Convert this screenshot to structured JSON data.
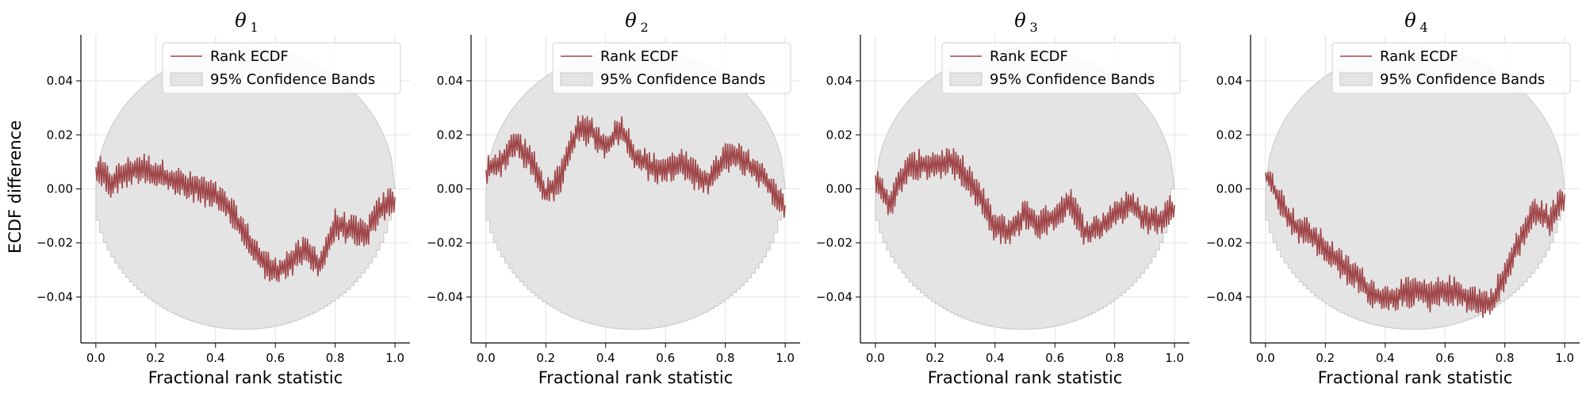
{
  "colors": {
    "line": "#a0474a",
    "band_fill": "#e4e4e4",
    "band_edge": "#c8c8c8",
    "grid": "#e3e3e3",
    "axis": "#000000",
    "legend_border": "#d0d0d0"
  },
  "shared": {
    "ylabel": "ECDF difference",
    "xlabel": "Fractional rank statistic",
    "legend": {
      "line_label": "Rank ECDF",
      "band_label": "95% Confidence Bands"
    }
  },
  "chart_data": [
    {
      "type": "line",
      "title": "θ",
      "title_subscript": "1",
      "xlabel": "Fractional rank statistic",
      "ylabel": "ECDF difference",
      "xlim": [
        -0.05,
        1.05
      ],
      "ylim": [
        -0.057,
        0.057
      ],
      "xticks": [
        "0.0",
        "0.2",
        "0.4",
        "0.6",
        "0.8",
        "1.0"
      ],
      "yticks": [
        "−0.04",
        "−0.02",
        "0.00",
        "0.02",
        "0.04"
      ],
      "grid": true,
      "legend_placement": "top-right",
      "band_halfwidth_at_center": 0.052,
      "series": [
        {
          "name": "Rank ECDF",
          "x": [
            0.0,
            0.05,
            0.1,
            0.15,
            0.2,
            0.25,
            0.3,
            0.35,
            0.4,
            0.45,
            0.5,
            0.55,
            0.6,
            0.65,
            0.7,
            0.75,
            0.8,
            0.85,
            0.9,
            0.95,
            1.0
          ],
          "y": [
            0.008,
            0.002,
            0.006,
            0.008,
            0.006,
            0.004,
            0.001,
            0.0,
            -0.003,
            -0.008,
            -0.017,
            -0.026,
            -0.031,
            -0.027,
            -0.023,
            -0.028,
            -0.013,
            -0.015,
            -0.017,
            -0.008,
            -0.003
          ]
        }
      ]
    },
    {
      "type": "line",
      "title": "θ",
      "title_subscript": "2",
      "xlabel": "Fractional rank statistic",
      "ylabel": "",
      "xlim": [
        -0.05,
        1.05
      ],
      "ylim": [
        -0.057,
        0.057
      ],
      "xticks": [
        "0.0",
        "0.2",
        "0.4",
        "0.6",
        "0.8",
        "1.0"
      ],
      "yticks": [
        "−0.04",
        "−0.02",
        "0.00",
        "0.02",
        "0.04"
      ],
      "grid": true,
      "legend_placement": "top-right",
      "band_halfwidth_at_center": 0.052,
      "series": [
        {
          "name": "Rank ECDF",
          "x": [
            0.0,
            0.05,
            0.1,
            0.15,
            0.2,
            0.25,
            0.3,
            0.35,
            0.4,
            0.45,
            0.5,
            0.55,
            0.6,
            0.65,
            0.7,
            0.75,
            0.8,
            0.85,
            0.9,
            0.95,
            1.0
          ],
          "y": [
            0.007,
            0.01,
            0.017,
            0.011,
            -0.002,
            0.004,
            0.021,
            0.022,
            0.015,
            0.023,
            0.012,
            0.008,
            0.007,
            0.01,
            0.005,
            0.003,
            0.012,
            0.011,
            0.007,
            0.001,
            -0.006
          ]
        }
      ]
    },
    {
      "type": "line",
      "title": "θ",
      "title_subscript": "3",
      "xlabel": "Fractional rank statistic",
      "ylabel": "",
      "xlim": [
        -0.05,
        1.05
      ],
      "ylim": [
        -0.057,
        0.057
      ],
      "xticks": [
        "0.0",
        "0.2",
        "0.4",
        "0.6",
        "0.8",
        "1.0"
      ],
      "yticks": [
        "−0.04",
        "−0.02",
        "0.00",
        "0.02",
        "0.04"
      ],
      "grid": true,
      "legend_placement": "top-right",
      "band_halfwidth_at_center": 0.052,
      "series": [
        {
          "name": "Rank ECDF",
          "x": [
            0.0,
            0.05,
            0.1,
            0.15,
            0.2,
            0.25,
            0.3,
            0.35,
            0.4,
            0.45,
            0.5,
            0.55,
            0.6,
            0.65,
            0.7,
            0.75,
            0.8,
            0.85,
            0.9,
            0.95,
            1.0
          ],
          "y": [
            0.005,
            -0.006,
            0.007,
            0.009,
            0.009,
            0.01,
            0.006,
            -0.003,
            -0.014,
            -0.016,
            -0.009,
            -0.013,
            -0.01,
            -0.004,
            -0.016,
            -0.015,
            -0.009,
            -0.006,
            -0.011,
            -0.012,
            -0.006
          ]
        }
      ]
    },
    {
      "type": "line",
      "title": "θ",
      "title_subscript": "4",
      "xlabel": "Fractional rank statistic",
      "ylabel": "",
      "xlim": [
        -0.05,
        1.05
      ],
      "ylim": [
        -0.057,
        0.057
      ],
      "xticks": [
        "0.0",
        "0.2",
        "0.4",
        "0.6",
        "0.8",
        "1.0"
      ],
      "yticks": [
        "−0.04",
        "−0.02",
        "0.00",
        "0.02",
        "0.04"
      ],
      "grid": true,
      "legend_placement": "top-right",
      "band_halfwidth_at_center": 0.052,
      "series": [
        {
          "name": "Rank ECDF",
          "x": [
            0.0,
            0.05,
            0.1,
            0.15,
            0.2,
            0.25,
            0.3,
            0.35,
            0.4,
            0.45,
            0.5,
            0.55,
            0.6,
            0.65,
            0.7,
            0.75,
            0.8,
            0.85,
            0.9,
            0.95,
            1.0
          ],
          "y": [
            0.006,
            -0.005,
            -0.014,
            -0.017,
            -0.022,
            -0.028,
            -0.032,
            -0.038,
            -0.041,
            -0.039,
            -0.038,
            -0.04,
            -0.037,
            -0.039,
            -0.041,
            -0.043,
            -0.032,
            -0.019,
            -0.008,
            -0.012,
            -0.002
          ]
        }
      ]
    }
  ]
}
